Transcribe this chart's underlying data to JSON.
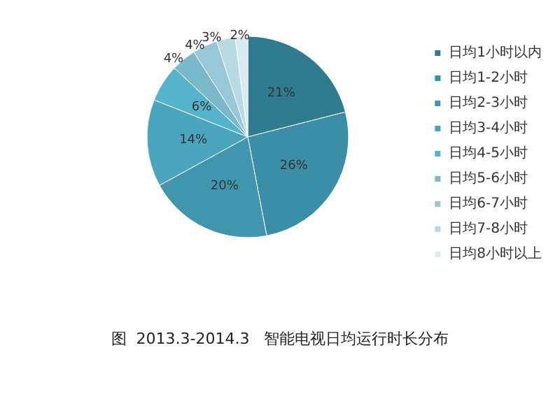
{
  "chart_data": {
    "type": "pie",
    "title": "图  2013.3-2014.3   智能电视日均运行时长分布",
    "categories": [
      "日均1小时以内",
      "日均1-2小时",
      "日均2-3小时",
      "日均3-4小时",
      "日均4-5小时",
      "日均5-6小时",
      "日均6-7小时",
      "日均7-8小时",
      "日均8小时以上"
    ],
    "values": [
      21,
      26,
      20,
      14,
      6,
      4,
      4,
      3,
      2
    ],
    "colors": [
      "#2f7b8f",
      "#3a8ea6",
      "#3f96ad",
      "#4aa5bf",
      "#55b3cc",
      "#7ab8cb",
      "#98c8d6",
      "#b9d9e3",
      "#d9eaf0"
    ],
    "value_labels": [
      "21%",
      "26%",
      "20%",
      "14%",
      "6%",
      "4%",
      "4%",
      "3%",
      "2%"
    ],
    "legend": "right"
  }
}
